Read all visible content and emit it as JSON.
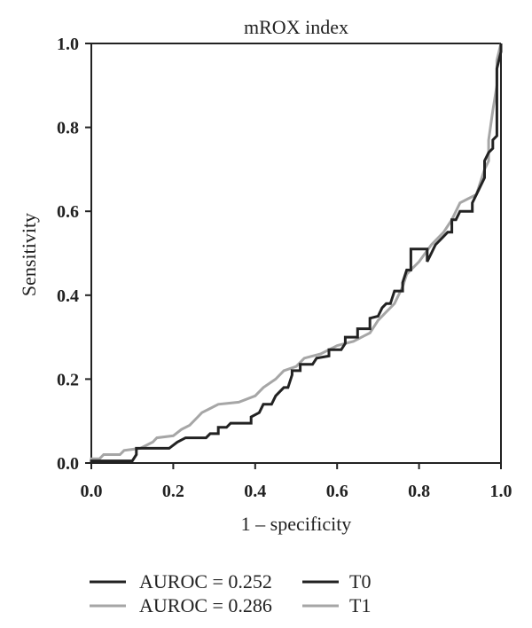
{
  "chart_data": {
    "type": "line",
    "title": "mROX index",
    "xlabel": "1 – specificity",
    "ylabel": "Sensitivity",
    "xlim": [
      0.0,
      1.0
    ],
    "ylim": [
      0.0,
      1.0
    ],
    "xticks": [
      "0.0",
      "0.2",
      "0.4",
      "0.6",
      "0.8",
      "1.0"
    ],
    "yticks": [
      "0.0",
      "0.2",
      "0.4",
      "0.6",
      "0.8",
      "1.0"
    ],
    "grid": false,
    "legend_position": "bottom",
    "legend": {
      "auroc_labels": [
        "AUROC = 0.252",
        "AUROC = 0.286"
      ],
      "series_labels": [
        "T0",
        "T1"
      ]
    },
    "series": [
      {
        "name": "T0",
        "color": "#222222",
        "points": [
          [
            0.0,
            0.0
          ],
          [
            0.0,
            0.005
          ],
          [
            0.1,
            0.005
          ],
          [
            0.11,
            0.02
          ],
          [
            0.11,
            0.035
          ],
          [
            0.19,
            0.035
          ],
          [
            0.21,
            0.05
          ],
          [
            0.23,
            0.06
          ],
          [
            0.28,
            0.06
          ],
          [
            0.29,
            0.07
          ],
          [
            0.31,
            0.07
          ],
          [
            0.31,
            0.085
          ],
          [
            0.33,
            0.085
          ],
          [
            0.34,
            0.095
          ],
          [
            0.39,
            0.095
          ],
          [
            0.39,
            0.11
          ],
          [
            0.41,
            0.12
          ],
          [
            0.42,
            0.14
          ],
          [
            0.44,
            0.14
          ],
          [
            0.45,
            0.16
          ],
          [
            0.47,
            0.18
          ],
          [
            0.48,
            0.18
          ],
          [
            0.49,
            0.21
          ],
          [
            0.49,
            0.22
          ],
          [
            0.51,
            0.22
          ],
          [
            0.51,
            0.235
          ],
          [
            0.54,
            0.235
          ],
          [
            0.55,
            0.25
          ],
          [
            0.58,
            0.255
          ],
          [
            0.58,
            0.27
          ],
          [
            0.61,
            0.27
          ],
          [
            0.62,
            0.285
          ],
          [
            0.62,
            0.3
          ],
          [
            0.65,
            0.3
          ],
          [
            0.65,
            0.32
          ],
          [
            0.68,
            0.32
          ],
          [
            0.68,
            0.345
          ],
          [
            0.7,
            0.35
          ],
          [
            0.71,
            0.37
          ],
          [
            0.72,
            0.38
          ],
          [
            0.73,
            0.38
          ],
          [
            0.74,
            0.41
          ],
          [
            0.76,
            0.41
          ],
          [
            0.76,
            0.43
          ],
          [
            0.77,
            0.46
          ],
          [
            0.78,
            0.46
          ],
          [
            0.78,
            0.51
          ],
          [
            0.82,
            0.51
          ],
          [
            0.82,
            0.48
          ],
          [
            0.83,
            0.5
          ],
          [
            0.84,
            0.52
          ],
          [
            0.86,
            0.54
          ],
          [
            0.87,
            0.55
          ],
          [
            0.88,
            0.55
          ],
          [
            0.88,
            0.58
          ],
          [
            0.89,
            0.58
          ],
          [
            0.9,
            0.6
          ],
          [
            0.93,
            0.6
          ],
          [
            0.93,
            0.62
          ],
          [
            0.94,
            0.64
          ],
          [
            0.95,
            0.66
          ],
          [
            0.96,
            0.68
          ],
          [
            0.96,
            0.72
          ],
          [
            0.97,
            0.74
          ],
          [
            0.98,
            0.75
          ],
          [
            0.98,
            0.77
          ],
          [
            0.99,
            0.78
          ],
          [
            0.99,
            0.94
          ],
          [
            1.0,
            0.98
          ],
          [
            1.0,
            1.0
          ]
        ]
      },
      {
        "name": "T1",
        "color": "#a6a6a6",
        "points": [
          [
            0.0,
            0.0
          ],
          [
            0.0,
            0.01
          ],
          [
            0.02,
            0.01
          ],
          [
            0.03,
            0.02
          ],
          [
            0.07,
            0.02
          ],
          [
            0.08,
            0.03
          ],
          [
            0.12,
            0.035
          ],
          [
            0.15,
            0.05
          ],
          [
            0.16,
            0.06
          ],
          [
            0.2,
            0.065
          ],
          [
            0.22,
            0.08
          ],
          [
            0.24,
            0.09
          ],
          [
            0.26,
            0.11
          ],
          [
            0.27,
            0.12
          ],
          [
            0.29,
            0.13
          ],
          [
            0.31,
            0.14
          ],
          [
            0.36,
            0.145
          ],
          [
            0.4,
            0.16
          ],
          [
            0.42,
            0.18
          ],
          [
            0.45,
            0.2
          ],
          [
            0.47,
            0.22
          ],
          [
            0.5,
            0.23
          ],
          [
            0.52,
            0.25
          ],
          [
            0.56,
            0.26
          ],
          [
            0.58,
            0.27
          ],
          [
            0.6,
            0.28
          ],
          [
            0.64,
            0.29
          ],
          [
            0.66,
            0.3
          ],
          [
            0.68,
            0.31
          ],
          [
            0.7,
            0.34
          ],
          [
            0.72,
            0.36
          ],
          [
            0.74,
            0.38
          ],
          [
            0.76,
            0.42
          ],
          [
            0.77,
            0.45
          ],
          [
            0.8,
            0.48
          ],
          [
            0.83,
            0.52
          ],
          [
            0.86,
            0.55
          ],
          [
            0.88,
            0.58
          ],
          [
            0.9,
            0.62
          ],
          [
            0.92,
            0.63
          ],
          [
            0.94,
            0.64
          ],
          [
            0.96,
            0.7
          ],
          [
            0.97,
            0.72
          ],
          [
            0.97,
            0.77
          ],
          [
            0.98,
            0.84
          ],
          [
            0.99,
            0.9
          ],
          [
            0.99,
            0.96
          ],
          [
            1.0,
            1.0
          ]
        ]
      }
    ]
  }
}
